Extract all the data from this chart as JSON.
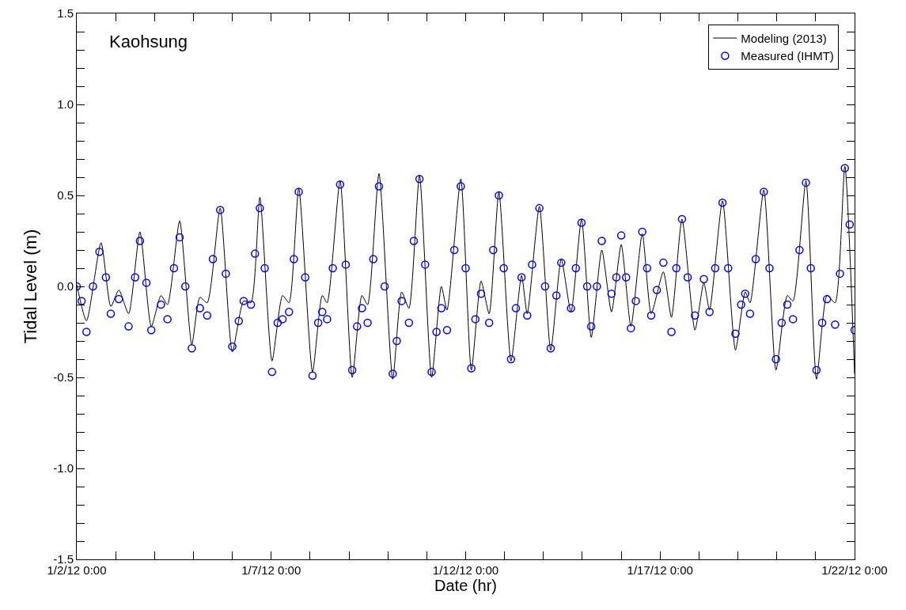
{
  "chart_data": {
    "type": "line",
    "xlabel": "Date (hr)",
    "ylabel": "Tidal Level (m)",
    "annotations": [
      "Kaohsung"
    ],
    "xlim": [
      "--01-02",
      "--01-22"
    ],
    "xticks": [
      {
        "value": "--01-02",
        "label": "1/2/12 0:00"
      },
      {
        "value": "--01-03",
        "label": null
      },
      {
        "value": "--01-04",
        "label": null
      },
      {
        "value": "--01-05",
        "label": null
      },
      {
        "value": "--01-06",
        "label": null
      },
      {
        "value": "--01-07",
        "label": "1/7/12 0:00"
      },
      {
        "value": "--01-08",
        "label": null
      },
      {
        "value": "--01-09",
        "label": null
      },
      {
        "value": "--01-10",
        "label": null
      },
      {
        "value": "--01-11",
        "label": null
      },
      {
        "value": "--01-12",
        "label": "1/12/12 0:00"
      },
      {
        "value": "--01-13",
        "label": null
      },
      {
        "value": "--01-14",
        "label": null
      },
      {
        "value": "--01-15",
        "label": null
      },
      {
        "value": "--01-16",
        "label": null
      },
      {
        "value": "--01-17",
        "label": "1/17/12 0:00"
      },
      {
        "value": "--01-18",
        "label": null
      },
      {
        "value": "--01-19",
        "label": null
      },
      {
        "value": "--01-20",
        "label": null
      },
      {
        "value": "--01-21",
        "label": null
      },
      {
        "value": "--01-22",
        "label": "1/22/12 0:00"
      }
    ],
    "ylim": [
      -1.5,
      1.5
    ],
    "yticks": [
      {
        "value": -1.5,
        "label": "-1.5"
      },
      {
        "value": -1.4,
        "label": null
      },
      {
        "value": -1.3,
        "label": null
      },
      {
        "value": -1.2,
        "label": null
      },
      {
        "value": -1.1,
        "label": null
      },
      {
        "value": -1,
        "label": "-1.0"
      },
      {
        "value": -0.9,
        "label": null
      },
      {
        "value": -0.8,
        "label": null
      },
      {
        "value": -0.7,
        "label": null
      },
      {
        "value": -0.6,
        "label": null
      },
      {
        "value": -0.5,
        "label": "-0.5"
      },
      {
        "value": -0.4,
        "label": null
      },
      {
        "value": -0.3,
        "label": null
      },
      {
        "value": -0.2,
        "label": null
      },
      {
        "value": -0.1,
        "label": null
      },
      {
        "value": 0,
        "label": "0.0"
      },
      {
        "value": 0.1,
        "label": null
      },
      {
        "value": 0.2,
        "label": null
      },
      {
        "value": 0.3,
        "label": null
      },
      {
        "value": 0.4,
        "label": null
      },
      {
        "value": 0.5,
        "label": "0.5"
      },
      {
        "value": 0.6,
        "label": null
      },
      {
        "value": 0.7,
        "label": null
      },
      {
        "value": 0.8,
        "label": null
      },
      {
        "value": 0.9,
        "label": null
      },
      {
        "value": 1,
        "label": "1.0"
      },
      {
        "value": 1.1,
        "label": null
      },
      {
        "value": 1.2,
        "label": null
      },
      {
        "value": 1.3,
        "label": null
      },
      {
        "value": 1.4,
        "label": null
      },
      {
        "value": 1.5,
        "label": "1.5"
      }
    ],
    "grid": false,
    "legend": "top right",
    "series": [
      {
        "name": "Modeling (2013)",
        "color": "#000000",
        "marker": "none",
        "line_style": "solid",
        "x": [
          "--01-02T00:00",
          "--01-02T06:00",
          "--01-02T15:00",
          "--01-02T21:00",
          "--01-03T02:00",
          "--01-03T08:00",
          "--01-03T15:00",
          "--01-03T22:00",
          "--01-04T04:00",
          "--01-04T08:00",
          "--01-04T15:30",
          "--01-04T23:00",
          "--01-05T04:00",
          "--01-05T08:30",
          "--01-05T16:30",
          "--01-06T00:00",
          "--01-06T07:00",
          "--01-06T11:30",
          "--01-06T17:00",
          "--01-07T00:30",
          "--01-07T07:00",
          "--01-07T11:00",
          "--01-07T17:00",
          "--01-08T01:30",
          "--01-08T07:30",
          "--01-08T10:30",
          "--01-08T18:30",
          "--01-09T02:00",
          "--01-09T08:00",
          "--01-09T11:30",
          "--01-09T18:30",
          "--01-10T03:00",
          "--01-10T08:30",
          "--01-10T13:00",
          "--01-10T19:30",
          "--01-11T03:00",
          "--01-11T09:00",
          "--01-11T12:30",
          "--01-11T21:00",
          "--01-12T03:30",
          "--01-12T09:30",
          "--01-12T14:30",
          "--01-12T20:30",
          "--01-13T04:00",
          "--01-13T10:30",
          "--01-13T14:00",
          "--01-13T21:30",
          "--01-14T04:30",
          "--01-14T11:00",
          "--01-14T17:00",
          "--01-14T23:30",
          "--01-15T05:30",
          "--01-15T12:00",
          "--01-15T18:00",
          "--01-16T00:00",
          "--01-16T06:00",
          "--01-16T13:00",
          "--01-16T18:30",
          "--01-17T02:00",
          "--01-17T07:00",
          "--01-17T13:30",
          "--01-17T21:30",
          "--01-18T03:00",
          "--01-18T06:30",
          "--01-18T14:30",
          "--01-18T22:30",
          "--01-19T04:30",
          "--01-19T07:30",
          "--01-19T16:00",
          "--01-19T23:30",
          "--01-20T06:30",
          "--01-20T10:00",
          "--01-20T18:00",
          "--01-21T00:30",
          "--01-21T07:00",
          "--01-21T12:00",
          "--01-21T18:00",
          "--01-22T00:00"
        ],
        "values": [
          0.01,
          -0.19,
          0.24,
          -0.11,
          -0.02,
          -0.15,
          0.3,
          -0.22,
          -0.05,
          -0.1,
          0.36,
          -0.32,
          -0.06,
          -0.09,
          0.43,
          -0.36,
          -0.08,
          -0.09,
          0.49,
          -0.41,
          -0.05,
          -0.09,
          0.54,
          -0.47,
          -0.05,
          -0.09,
          0.58,
          -0.5,
          -0.05,
          -0.1,
          0.62,
          -0.51,
          -0.03,
          -0.12,
          0.61,
          -0.5,
          0.0,
          -0.13,
          0.59,
          -0.46,
          0.03,
          -0.15,
          0.52,
          -0.41,
          0.06,
          -0.15,
          0.44,
          -0.35,
          0.15,
          -0.14,
          0.37,
          -0.28,
          0.2,
          -0.14,
          0.23,
          -0.22,
          0.29,
          -0.15,
          0.08,
          -0.17,
          0.37,
          -0.24,
          0.02,
          -0.13,
          0.47,
          -0.35,
          -0.03,
          -0.09,
          0.53,
          -0.46,
          -0.05,
          -0.08,
          0.58,
          -0.51,
          -0.05,
          -0.09,
          0.66,
          -0.48
        ]
      },
      {
        "name": "Measured (IHMT)",
        "type": "scatter",
        "color": "#0000ff",
        "marker": "circle",
        "x": [
          "--01-02T00:00",
          "--01-02T03:00",
          "--01-02T06:00",
          "--01-02T10:00",
          "--01-02T14:00",
          "--01-02T18:00",
          "--01-02T21:00",
          "--01-03T02:00",
          "--01-03T08:00",
          "--01-03T12:00",
          "--01-03T15:00",
          "--01-03T19:00",
          "--01-03T22:00",
          "--01-04T04:00",
          "--01-04T08:00",
          "--01-04T12:00",
          "--01-04T15:30",
          "--01-04T19:00",
          "--01-04T23:00",
          "--01-05T04:00",
          "--01-05T08:30",
          "--01-05T12:00",
          "--01-05T16:30",
          "--01-05T20:00",
          "--01-06T00:00",
          "--01-06T04:00",
          "--01-06T07:00",
          "--01-06T11:30",
          "--01-06T14:00",
          "--01-06T17:00",
          "--01-06T20:00",
          "--01-07T00:30",
          "--01-07T04:00",
          "--01-07T07:00",
          "--01-07T11:00",
          "--01-07T14:00",
          "--01-07T17:00",
          "--01-07T21:00",
          "--01-08T01:30",
          "--01-08T05:00",
          "--01-08T07:30",
          "--01-08T10:30",
          "--01-08T14:00",
          "--01-08T18:30",
          "--01-08T22:00",
          "--01-09T02:00",
          "--01-09T05:00",
          "--01-09T08:00",
          "--01-09T11:30",
          "--01-09T15:00",
          "--01-09T18:30",
          "--01-09T22:00",
          "--01-10T03:00",
          "--01-10T05:30",
          "--01-10T08:30",
          "--01-10T13:00",
          "--01-10T16:00",
          "--01-10T19:30",
          "--01-10T23:00",
          "--01-11T03:00",
          "--01-11T06:00",
          "--01-11T09:00",
          "--01-11T12:30",
          "--01-11T17:00",
          "--01-11T21:00",
          "--01-12T00:00",
          "--01-12T03:30",
          "--01-12T06:00",
          "--01-12T09:30",
          "--01-12T14:30",
          "--01-12T17:00",
          "--01-12T20:30",
          "--01-12T23:30",
          "--01-13T04:00",
          "--01-13T07:00",
          "--01-13T10:30",
          "--01-13T14:00",
          "--01-13T17:00",
          "--01-13T21:30",
          "--01-14T01:00",
          "--01-14T04:30",
          "--01-14T08:00",
          "--01-14T11:00",
          "--01-14T17:00",
          "--01-14T20:00",
          "--01-14T23:30",
          "--01-15T03:00",
          "--01-15T05:30",
          "--01-15T09:00",
          "--01-15T12:00",
          "--01-15T18:00",
          "--01-15T21:00",
          "--01-16T00:00",
          "--01-16T03:00",
          "--01-16T06:00",
          "--01-16T09:00",
          "--01-16T13:00",
          "--01-16T16:00",
          "--01-16T18:30",
          "--01-16T22:00",
          "--01-17T02:00",
          "--01-17T07:00",
          "--01-17T10:00",
          "--01-17T13:30",
          "--01-17T17:00",
          "--01-17T21:30",
          "--01-18T03:00",
          "--01-18T06:30",
          "--01-18T10:00",
          "--01-18T14:30",
          "--01-18T18:00",
          "--01-18T22:30",
          "--01-19T02:00",
          "--01-19T04:30",
          "--01-19T07:30",
          "--01-19T11:00",
          "--01-19T16:00",
          "--01-19T19:30",
          "--01-19T23:30",
          "--01-20T03:00",
          "--01-20T06:30",
          "--01-20T10:00",
          "--01-20T14:00",
          "--01-20T18:00",
          "--01-20T21:00",
          "--01-21T00:30",
          "--01-21T04:00",
          "--01-21T07:00",
          "--01-21T12:00",
          "--01-21T15:00",
          "--01-21T18:00",
          "--01-21T21:00",
          "--01-22T00:00"
        ],
        "values": [
          0.0,
          -0.08,
          -0.25,
          0.0,
          0.19,
          0.05,
          -0.15,
          -0.07,
          -0.22,
          0.05,
          0.25,
          0.02,
          -0.24,
          -0.1,
          -0.18,
          0.1,
          0.27,
          0.0,
          -0.34,
          -0.12,
          -0.16,
          0.15,
          0.42,
          0.07,
          -0.33,
          -0.19,
          -0.08,
          -0.1,
          0.18,
          0.43,
          0.1,
          -0.47,
          -0.2,
          -0.18,
          -0.14,
          0.15,
          0.52,
          0.05,
          -0.49,
          -0.2,
          -0.14,
          -0.18,
          0.1,
          0.56,
          0.12,
          -0.46,
          -0.22,
          -0.12,
          -0.2,
          0.15,
          0.55,
          0.0,
          -0.48,
          -0.3,
          -0.08,
          -0.2,
          0.25,
          0.59,
          0.12,
          -0.47,
          -0.25,
          -0.12,
          -0.24,
          0.2,
          0.55,
          0.1,
          -0.45,
          -0.18,
          -0.04,
          -0.2,
          0.2,
          0.5,
          0.1,
          -0.4,
          -0.12,
          0.05,
          -0.16,
          0.12,
          0.43,
          0.0,
          -0.34,
          -0.05,
          0.13,
          -0.12,
          0.1,
          0.35,
          0.0,
          -0.22,
          0.0,
          0.25,
          -0.04,
          0.05,
          0.28,
          0.05,
          -0.23,
          -0.08,
          0.3,
          0.1,
          -0.16,
          -0.02,
          0.13,
          -0.25,
          0.1,
          0.37,
          0.05,
          -0.16,
          0.04,
          -0.14,
          0.1,
          0.46,
          0.1,
          -0.26,
          -0.1,
          -0.04,
          -0.15,
          0.15,
          0.52,
          0.1,
          -0.4,
          -0.2,
          -0.1,
          -0.18,
          0.2,
          0.57,
          0.1,
          -0.46,
          -0.2,
          -0.07,
          -0.21,
          0.07,
          0.65,
          0.34,
          -0.24
        ]
      }
    ]
  }
}
